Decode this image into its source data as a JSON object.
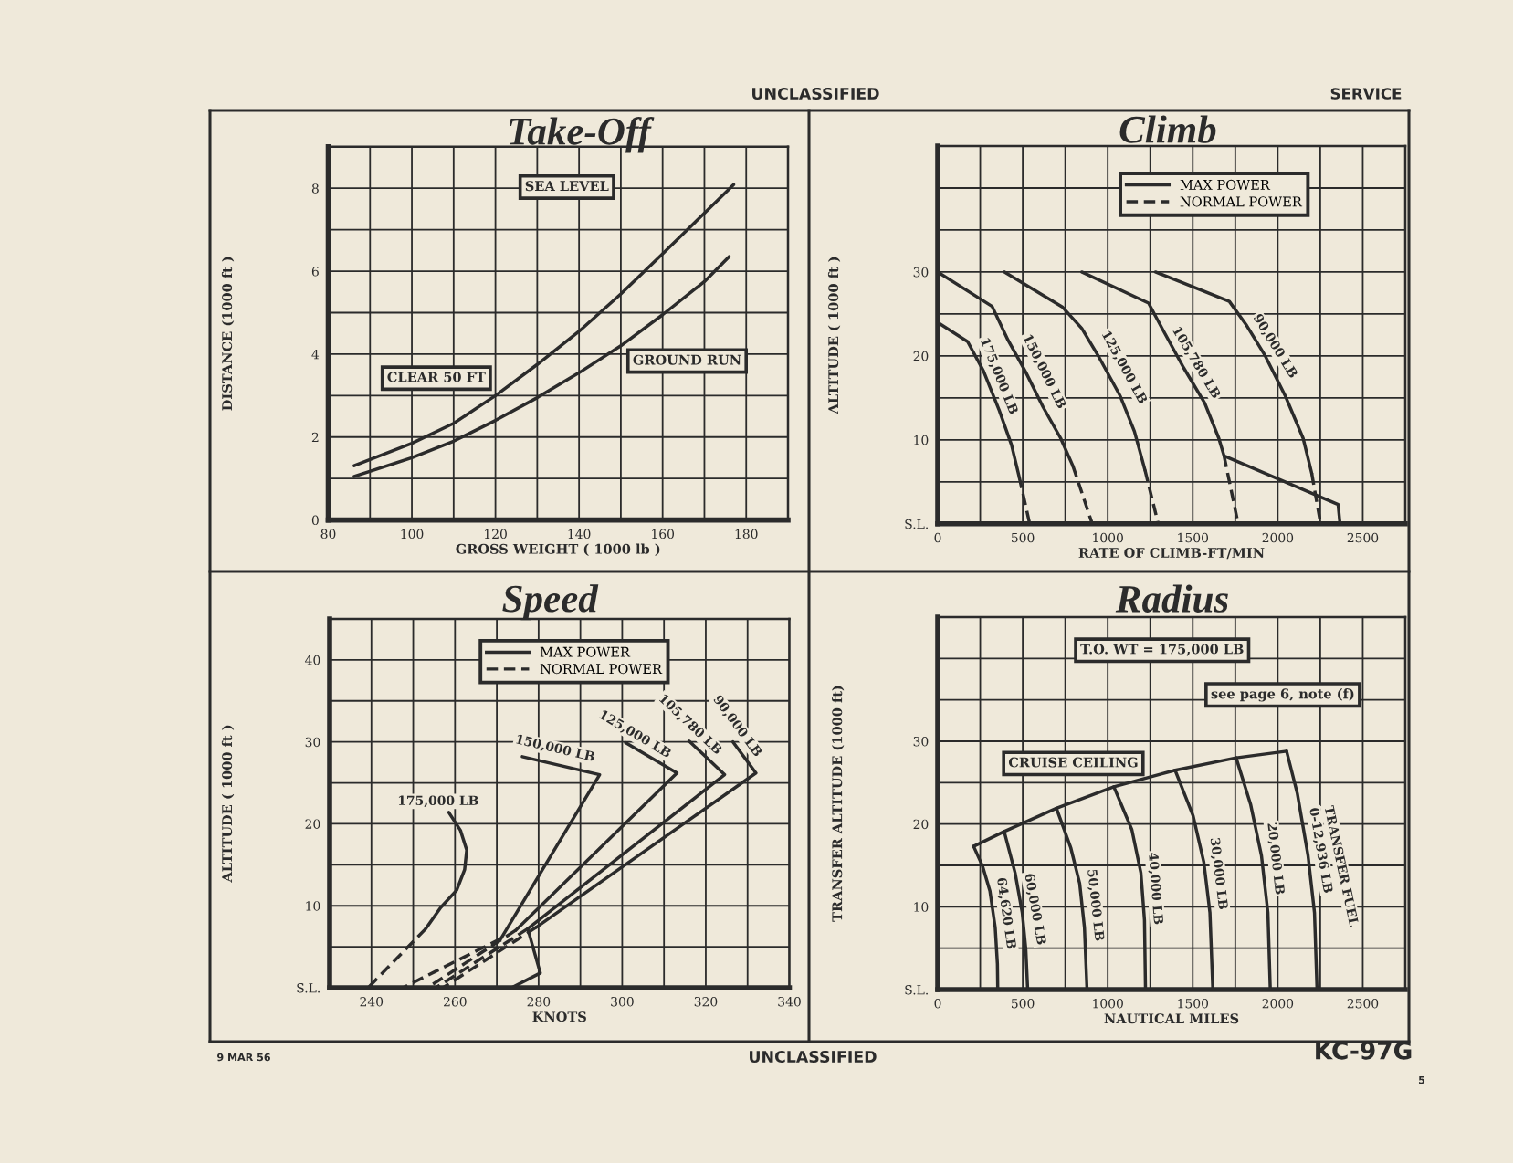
{
  "chart_data": [
    {
      "type": "line",
      "title": "Take-Off",
      "xlabel": "GROSS WEIGHT ( 1000 lb )",
      "ylabel": "DISTANCE (1000 ft )",
      "xlim": [
        80,
        190
      ],
      "xticks": [
        80,
        {
          "value": 90,
          "label": null
        },
        100,
        {
          "value": 110,
          "label": null
        },
        120,
        {
          "value": 130,
          "label": null
        },
        140,
        {
          "value": 150,
          "label": null
        },
        160,
        {
          "value": 170,
          "label": null
        },
        180
      ],
      "ylim": [
        0,
        9
      ],
      "yticks": [
        0,
        {
          "value": 1,
          "label": null
        },
        2,
        {
          "value": 3,
          "label": null
        },
        4,
        {
          "value": 5,
          "label": null
        },
        6,
        {
          "value": 7,
          "label": null
        },
        8
      ],
      "grid": true,
      "series": [
        {
          "name": "CLEAR 50 FT",
          "color": "#2b2b2b",
          "x": [
            86.2,
            100,
            110,
            120,
            130,
            140,
            150,
            160,
            170,
            177.0
          ],
          "values": [
            1.31,
            1.85,
            2.33,
            3.0,
            3.75,
            4.55,
            5.45,
            6.42,
            7.4,
            8.09
          ]
        },
        {
          "name": "GROUND RUN",
          "color": "#2b2b2b",
          "x": [
            86.2,
            100,
            110,
            120,
            130,
            140,
            150,
            160,
            170,
            175.9
          ],
          "values": [
            1.05,
            1.5,
            1.9,
            2.4,
            2.95,
            3.55,
            4.2,
            4.95,
            5.75,
            6.35
          ]
        }
      ],
      "annotations": [
        "SEA LEVEL"
      ]
    },
    {
      "type": "line",
      "title": "Climb",
      "xlabel": "RATE OF CLIMB-FT/MIN",
      "ylabel": "ALTITUDE ( 1000 ft )",
      "xlim": [
        0,
        2750
      ],
      "xticks": [
        0,
        {
          "value": 250,
          "label": null
        },
        500,
        {
          "value": 750,
          "label": null
        },
        1000,
        {
          "value": 1250,
          "label": null
        },
        1500,
        {
          "value": 1750,
          "label": null
        },
        2000,
        {
          "value": 2250,
          "label": null
        },
        2500
      ],
      "ylim": [
        0,
        45
      ],
      "yticks": [
        {
          "value": 0,
          "label": "S.L."
        },
        {
          "value": 5,
          "label": null
        },
        10,
        {
          "value": 15,
          "label": null
        },
        20,
        {
          "value": 25,
          "label": null
        },
        30,
        {
          "value": 35,
          "label": null
        },
        {
          "value": 40,
          "label": null
        }
      ],
      "grid": true,
      "legend": "top right",
      "series": [
        {
          "name": "MAX POWER",
          "color": "#2b2b2b",
          "line_style": "solid",
          "x": [
            0,
            176,
            269,
            362,
            434,
            479
          ],
          "values": [
            24.0,
            21.7,
            18.2,
            13.5,
            9.4,
            5.6
          ]
        },
        {
          "name": "NORMAL POWER",
          "color": "#2b2b2b",
          "line_style": "dashed",
          "x": [
            479,
            541
          ],
          "values": [
            5.6,
            0
          ]
        },
        {
          "color": "#2b2b2b",
          "line_style": "solid",
          "x": [
            0,
            320,
            413,
            517,
            620,
            723,
            795
          ],
          "values": [
            30,
            25.9,
            21.9,
            18.1,
            13.9,
            10.2,
            6.9
          ]
        },
        {
          "color": "#2b2b2b",
          "line_style": "dashed",
          "x": [
            795,
            909
          ],
          "values": [
            6.9,
            0
          ]
        },
        {
          "color": "#2b2b2b",
          "line_style": "solid",
          "x": [
            393,
            735,
            847,
            950,
            1074,
            1157,
            1219
          ],
          "values": [
            30,
            25.8,
            23.3,
            19.8,
            15.2,
            11.0,
            6.4
          ]
        },
        {
          "color": "#2b2b2b",
          "line_style": "dashed",
          "x": [
            1219,
            1297
          ],
          "values": [
            6.4,
            0
          ]
        },
        {
          "color": "#2b2b2b",
          "line_style": "solid",
          "x": [
            847,
            1240,
            1322,
            1446,
            1570,
            1653,
            1684,
            2355,
            2366
          ],
          "values": [
            30,
            26.3,
            23.2,
            18.6,
            14.4,
            10.2,
            8.1,
            2.3,
            0
          ]
        },
        {
          "color": "#2b2b2b",
          "line_style": "dashed",
          "x": [
            1684,
            1767
          ],
          "values": [
            8.1,
            0
          ]
        },
        {
          "color": "#2b2b2b",
          "line_style": "solid",
          "x": [
            1281,
            1715,
            1818,
            1921,
            2045,
            2149,
            2200
          ],
          "values": [
            30,
            26.5,
            23.6,
            20.2,
            15.2,
            10.2,
            6.0
          ]
        },
        {
          "color": "#2b2b2b",
          "line_style": "dashed",
          "x": [
            2200,
            2252
          ],
          "values": [
            6.0,
            0
          ]
        }
      ],
      "annotations": [
        "175,000 LB",
        "150,000 LB",
        "125,000 LB",
        "105,780 LB",
        "90,000 LB"
      ]
    },
    {
      "type": "line",
      "title": "Speed",
      "xlabel": "KNOTS",
      "ylabel": "ALTITUDE ( 1000 ft )",
      "xlim": [
        230,
        340
      ],
      "xticks": [
        240,
        {
          "value": 250,
          "label": null
        },
        260,
        {
          "value": 270,
          "label": null
        },
        280,
        {
          "value": 290,
          "label": null
        },
        300,
        {
          "value": 310,
          "label": null
        },
        320,
        {
          "value": 330,
          "label": null
        },
        340
      ],
      "ylim": [
        0,
        45
      ],
      "yticks": [
        {
          "value": 0,
          "label": "S.L."
        },
        {
          "value": 5,
          "label": null
        },
        10,
        {
          "value": 15,
          "label": null
        },
        20,
        {
          "value": 25,
          "label": null
        },
        30,
        {
          "value": 35,
          "label": null
        },
        40
      ],
      "grid": true,
      "legend": "top",
      "series": [
        {
          "name": "MAX POWER",
          "color": "#2b2b2b",
          "line_style": "solid",
          "x": [
            258.5,
            261.3,
            262.8,
            262.3,
            260.4,
            256.6,
            253.0
          ],
          "values": [
            21.4,
            19.2,
            16.8,
            14.4,
            11.9,
            9.8,
            7.2
          ]
        },
        {
          "name": "NORMAL POWER",
          "color": "#2b2b2b",
          "line_style": "dashed",
          "x": [
            253.0,
            239.2
          ],
          "values": [
            7.2,
            0
          ]
        },
        {
          "color": "#2b2b2b",
          "line_style": "solid",
          "x": [
            276.1,
            294.6,
            271.0
          ],
          "values": [
            28.2,
            26.0,
            6.0
          ]
        },
        {
          "color": "#2b2b2b",
          "line_style": "dashed",
          "x": [
            271.0,
            247.5
          ],
          "values": [
            6.0,
            0
          ]
        },
        {
          "color": "#2b2b2b",
          "line_style": "solid",
          "x": [
            300.8,
            313.1,
            274.5
          ],
          "values": [
            29.9,
            26.2,
            7.0
          ]
        },
        {
          "color": "#2b2b2b",
          "line_style": "dashed",
          "x": [
            274.5,
            253.4
          ],
          "values": [
            7.0,
            0
          ]
        },
        {
          "color": "#2b2b2b",
          "line_style": "solid",
          "x": [
            316.0,
            324.5,
            277.4,
            280.4,
            273.5
          ],
          "values": [
            30.1,
            26.0,
            7.2,
            1.8,
            0
          ]
        },
        {
          "color": "#2b2b2b",
          "line_style": "dashed",
          "x": [
            277.4,
            255.4
          ],
          "values": [
            7.2,
            0
          ]
        },
        {
          "color": "#2b2b2b",
          "line_style": "solid",
          "x": [
            326.5,
            332.0,
            279.5
          ],
          "values": [
            30.0,
            26.2,
            7.4
          ]
        },
        {
          "color": "#2b2b2b",
          "line_style": "dashed",
          "x": [
            279.5,
            257.1
          ],
          "values": [
            7.4,
            0
          ]
        }
      ],
      "annotations": [
        "175,000 LB",
        "150,000 LB",
        "125,000 LB",
        "105,780 LB",
        "90,000 LB"
      ]
    },
    {
      "type": "line",
      "title": "Radius",
      "xlabel": "NAUTICAL MILES",
      "ylabel": "TRANSFER ALTITUDE (1000 ft)",
      "xlim": [
        0,
        2750
      ],
      "xticks": [
        0,
        {
          "value": 250,
          "label": null
        },
        500,
        {
          "value": 750,
          "label": null
        },
        1000,
        {
          "value": 1250,
          "label": null
        },
        1500,
        {
          "value": 1750,
          "label": null
        },
        2000,
        {
          "value": 2250,
          "label": null
        },
        2500
      ],
      "ylim": [
        0,
        45
      ],
      "yticks": [
        {
          "value": 0,
          "label": "S.L."
        },
        {
          "value": 5,
          "label": null
        },
        10,
        {
          "value": 15,
          "label": null
        },
        20,
        {
          "value": 25,
          "label": null
        },
        30,
        {
          "value": 35,
          "label": null
        },
        {
          "value": 40,
          "label": null
        }
      ],
      "grid": true,
      "series": [
        {
          "name": "CRUISE CEILING",
          "color": "#2b2b2b",
          "x": [
            211,
            391,
            698,
            1036,
            1396,
            1755,
            2052
          ],
          "values": [
            17.3,
            19.1,
            21.9,
            24.5,
            26.5,
            28.0,
            28.8
          ]
        },
        {
          "name": "64,620 LB",
          "color": "#2b2b2b",
          "x": [
            211,
            264,
            307,
            338,
            351,
            353
          ],
          "values": [
            17.3,
            14.9,
            11.9,
            7.5,
            3.1,
            0
          ]
        },
        {
          "name": "60,000 LB",
          "color": "#2b2b2b",
          "x": [
            391,
            455,
            497,
            518,
            529
          ],
          "values": [
            19.1,
            14.1,
            9.3,
            4.9,
            0
          ]
        },
        {
          "name": "50,000 LB",
          "color": "#2b2b2b",
          "x": [
            698,
            783,
            835,
            863,
            878
          ],
          "values": [
            21.9,
            17.1,
            12.8,
            7.5,
            0
          ]
        },
        {
          "name": "40,000 LB",
          "color": "#2b2b2b",
          "x": [
            1036,
            1142,
            1195,
            1216,
            1222
          ],
          "values": [
            24.5,
            19.3,
            14.1,
            8.4,
            0
          ]
        },
        {
          "name": "30,000 LB",
          "color": "#2b2b2b",
          "x": [
            1396,
            1502,
            1565,
            1601,
            1618
          ],
          "values": [
            26.5,
            21.0,
            15.4,
            9.3,
            0
          ]
        },
        {
          "name": "20,000 LB",
          "color": "#2b2b2b",
          "x": [
            1755,
            1840,
            1904,
            1942,
            1956
          ],
          "values": [
            28.0,
            22.4,
            16.2,
            9.3,
            0
          ]
        },
        {
          "name": "0-12,936 LB",
          "color": "#2b2b2b",
          "x": [
            2052,
            2115,
            2178,
            2216,
            2231
          ],
          "values": [
            28.8,
            23.7,
            16.2,
            9.3,
            0
          ]
        }
      ],
      "annotations": [
        "T.O. WT = 175,000 LB",
        "see page 6, note (f)",
        "TRANSFER FUEL"
      ]
    },
    {
      "type": "other",
      "annotations": [
        "UNCLASSIFIED",
        "SERVICE",
        "9 MAR 56",
        "UNCLASSIFIED",
        "KC-97G",
        "5"
      ]
    }
  ]
}
